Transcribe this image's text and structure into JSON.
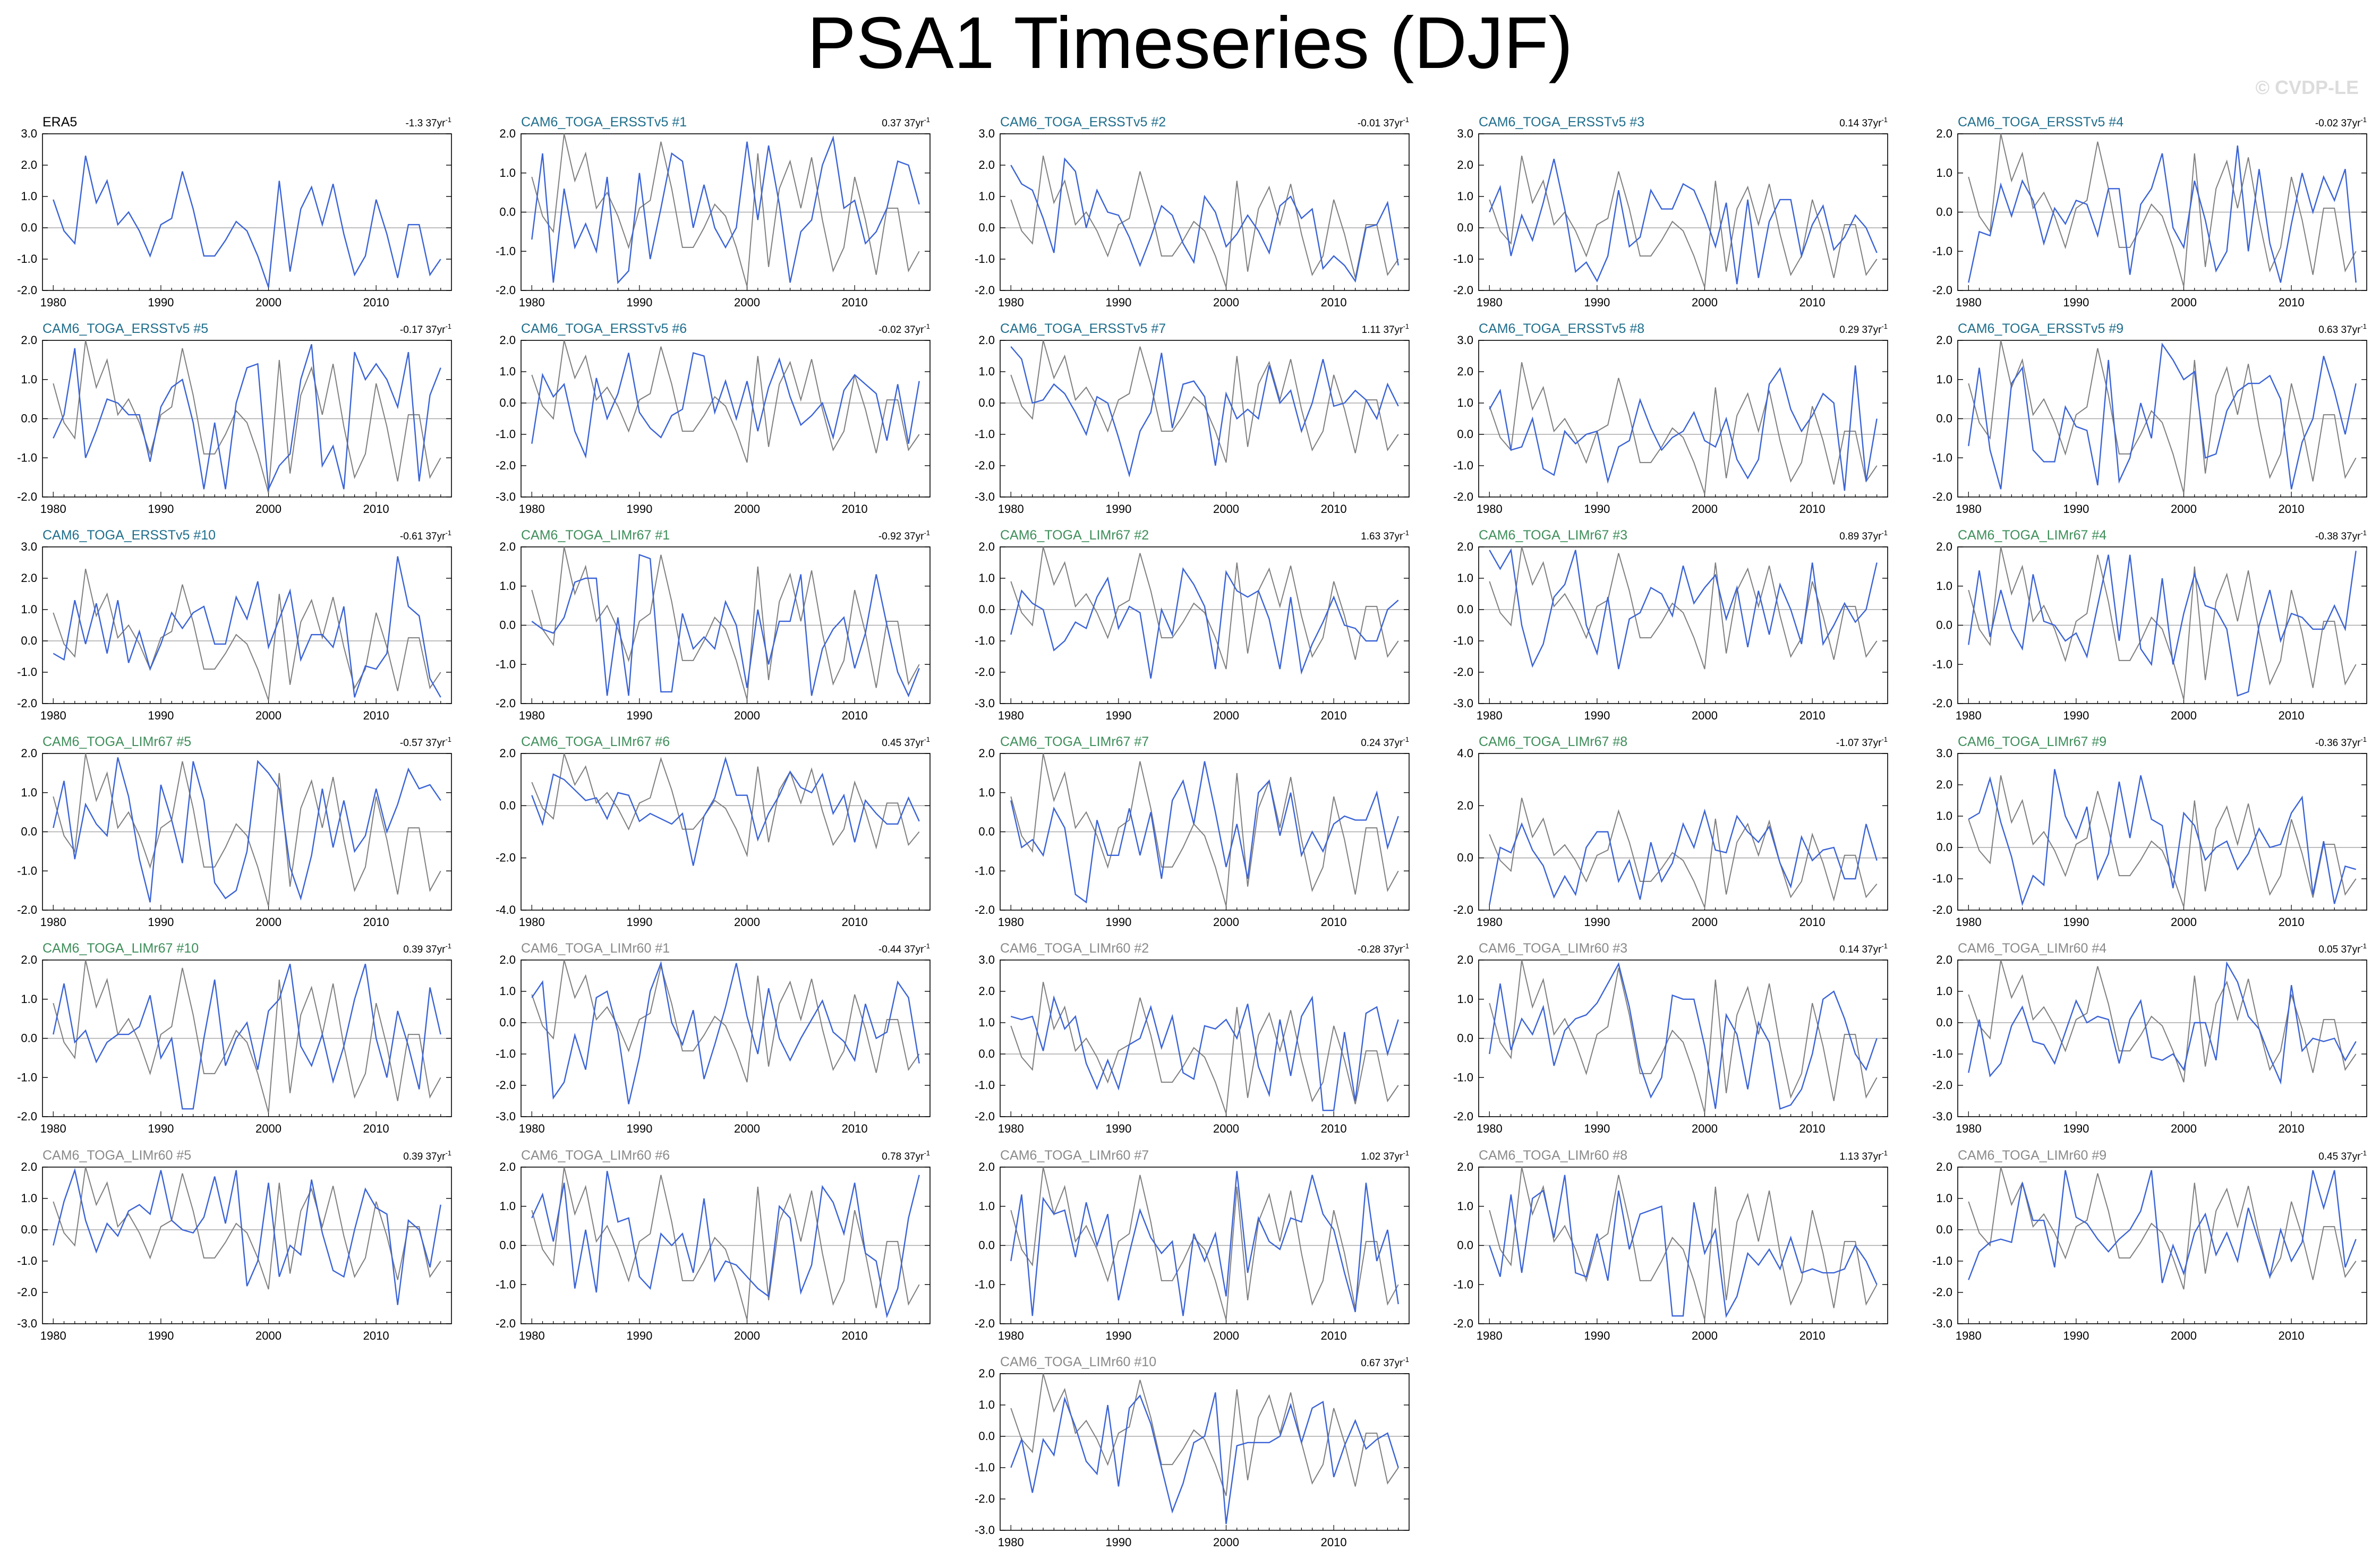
{
  "title": "PSA1 Timeseries (DJF)",
  "watermark": "© CVDP-LE",
  "colors": {
    "obs": "#000000",
    "ersst": "#1F6E8C",
    "limr67": "#3E8E5A",
    "limr60": "#8A8A8A",
    "line_member": "#3A63D6",
    "line_obs": "#7F7F7F"
  },
  "chart_data": {
    "type": "line",
    "x": [
      1980,
      1981,
      1982,
      1983,
      1984,
      1985,
      1986,
      1987,
      1988,
      1989,
      1990,
      1991,
      1992,
      1993,
      1994,
      1995,
      1996,
      1997,
      1998,
      1999,
      2000,
      2001,
      2002,
      2003,
      2004,
      2005,
      2006,
      2007,
      2008,
      2009,
      2010,
      2011,
      2012,
      2013,
      2014,
      2015,
      2016
    ],
    "x_ticks": [
      1980,
      1990,
      2000,
      2010
    ],
    "reference": {
      "name": "ERA5",
      "values": [
        0.9,
        -0.1,
        -0.5,
        2.3,
        0.8,
        1.5,
        0.1,
        0.5,
        -0.1,
        -0.9,
        0.1,
        0.3,
        1.8,
        0.6,
        -0.9,
        -0.9,
        -0.4,
        0.2,
        -0.1,
        -0.9,
        -1.9,
        1.5,
        -1.4,
        0.6,
        1.3,
        0.1,
        1.4,
        -0.2,
        -1.5,
        -0.9,
        0.9,
        -0.2,
        -1.6,
        0.1,
        0.1,
        -1.5,
        -1.0
      ]
    },
    "panels": [
      {
        "label": "ERA5",
        "group": "obs",
        "trend": "-1.3",
        "ylim": [
          -2.0,
          3.0
        ],
        "yticks": [
          3.0,
          2.0,
          1.0,
          0.0,
          -1.0,
          -2.0
        ]
      },
      {
        "label": "CAM6_TOGA_ERSSTv5 #1",
        "group": "ersst",
        "trend": "0.37",
        "ylim": [
          -2.0,
          2.0
        ],
        "yticks": [
          2.0,
          1.0,
          0.0,
          -1.0,
          -2.0
        ]
      },
      {
        "label": "CAM6_TOGA_ERSSTv5 #2",
        "group": "ersst",
        "trend": "-0.01",
        "ylim": [
          -2.0,
          3.0
        ],
        "yticks": [
          3.0,
          2.0,
          1.0,
          0.0,
          -1.0,
          -2.0
        ]
      },
      {
        "label": "CAM6_TOGA_ERSSTv5 #3",
        "group": "ersst",
        "trend": "0.14",
        "ylim": [
          -2.0,
          3.0
        ],
        "yticks": [
          3.0,
          2.0,
          1.0,
          0.0,
          -1.0,
          -2.0
        ]
      },
      {
        "label": "CAM6_TOGA_ERSSTv5 #4",
        "group": "ersst",
        "trend": "-0.02",
        "ylim": [
          -2.0,
          2.0
        ],
        "yticks": [
          2.0,
          1.0,
          0.0,
          -1.0,
          -2.0
        ]
      },
      {
        "label": "CAM6_TOGA_ERSSTv5 #5",
        "group": "ersst",
        "trend": "-0.17",
        "ylim": [
          -2.0,
          2.0
        ],
        "yticks": [
          2.0,
          1.0,
          0.0,
          -1.0,
          -2.0
        ]
      },
      {
        "label": "CAM6_TOGA_ERSSTv5 #6",
        "group": "ersst",
        "trend": "-0.02",
        "ylim": [
          -3.0,
          2.0
        ],
        "yticks": [
          2.0,
          1.0,
          0.0,
          -1.0,
          -2.0,
          -3.0
        ]
      },
      {
        "label": "CAM6_TOGA_ERSSTv5 #7",
        "group": "ersst",
        "trend": "1.11",
        "ylim": [
          -3.0,
          2.0
        ],
        "yticks": [
          2.0,
          1.0,
          0.0,
          -1.0,
          -2.0,
          -3.0
        ]
      },
      {
        "label": "CAM6_TOGA_ERSSTv5 #8",
        "group": "ersst",
        "trend": "0.29",
        "ylim": [
          -2.0,
          3.0
        ],
        "yticks": [
          3.0,
          2.0,
          1.0,
          0.0,
          -1.0,
          -2.0
        ]
      },
      {
        "label": "CAM6_TOGA_ERSSTv5 #9",
        "group": "ersst",
        "trend": "0.63",
        "ylim": [
          -2.0,
          2.0
        ],
        "yticks": [
          2.0,
          1.0,
          0.0,
          -1.0,
          -2.0
        ]
      },
      {
        "label": "CAM6_TOGA_ERSSTv5 #10",
        "group": "ersst",
        "trend": "-0.61",
        "ylim": [
          -2.0,
          3.0
        ],
        "yticks": [
          3.0,
          2.0,
          1.0,
          0.0,
          -1.0,
          -2.0
        ]
      },
      {
        "label": "CAM6_TOGA_LIMr67 #1",
        "group": "limr67",
        "trend": "-0.92",
        "ylim": [
          -2.0,
          2.0
        ],
        "yticks": [
          2.0,
          1.0,
          0.0,
          -1.0,
          -2.0
        ]
      },
      {
        "label": "CAM6_TOGA_LIMr67 #2",
        "group": "limr67",
        "trend": "1.63",
        "ylim": [
          -3.0,
          2.0
        ],
        "yticks": [
          2.0,
          1.0,
          0.0,
          -1.0,
          -2.0,
          -3.0
        ]
      },
      {
        "label": "CAM6_TOGA_LIMr67 #3",
        "group": "limr67",
        "trend": "0.89",
        "ylim": [
          -3.0,
          2.0
        ],
        "yticks": [
          2.0,
          1.0,
          0.0,
          -1.0,
          -2.0,
          -3.0
        ]
      },
      {
        "label": "CAM6_TOGA_LIMr67 #4",
        "group": "limr67",
        "trend": "-0.38",
        "ylim": [
          -2.0,
          2.0
        ],
        "yticks": [
          2.0,
          1.0,
          0.0,
          -1.0,
          -2.0
        ]
      },
      {
        "label": "CAM6_TOGA_LIMr67 #5",
        "group": "limr67",
        "trend": "-0.57",
        "ylim": [
          -2.0,
          2.0
        ],
        "yticks": [
          2.0,
          1.0,
          0.0,
          -1.0,
          -2.0
        ]
      },
      {
        "label": "CAM6_TOGA_LIMr67 #6",
        "group": "limr67",
        "trend": "0.45",
        "ylim": [
          -4.0,
          2.0
        ],
        "yticks": [
          2.0,
          0.0,
          -2.0,
          -4.0
        ]
      },
      {
        "label": "CAM6_TOGA_LIMr67 #7",
        "group": "limr67",
        "trend": "0.24",
        "ylim": [
          -2.0,
          2.0
        ],
        "yticks": [
          2.0,
          1.0,
          0.0,
          -1.0,
          -2.0
        ]
      },
      {
        "label": "CAM6_TOGA_LIMr67 #8",
        "group": "limr67",
        "trend": "-1.07",
        "ylim": [
          -2.0,
          4.0
        ],
        "yticks": [
          4.0,
          2.0,
          0.0,
          -2.0
        ]
      },
      {
        "label": "CAM6_TOGA_LIMr67 #9",
        "group": "limr67",
        "trend": "-0.36",
        "ylim": [
          -2.0,
          3.0
        ],
        "yticks": [
          3.0,
          2.0,
          1.0,
          0.0,
          -1.0,
          -2.0
        ]
      },
      {
        "label": "CAM6_TOGA_LIMr67 #10",
        "group": "limr67",
        "trend": "0.39",
        "ylim": [
          -2.0,
          2.0
        ],
        "yticks": [
          2.0,
          1.0,
          0.0,
          -1.0,
          -2.0
        ]
      },
      {
        "label": "CAM6_TOGA_LIMr60 #1",
        "group": "limr60",
        "trend": "-0.44",
        "ylim": [
          -3.0,
          2.0
        ],
        "yticks": [
          2.0,
          1.0,
          0.0,
          -1.0,
          -2.0,
          -3.0
        ]
      },
      {
        "label": "CAM6_TOGA_LIMr60 #2",
        "group": "limr60",
        "trend": "-0.28",
        "ylim": [
          -2.0,
          3.0
        ],
        "yticks": [
          3.0,
          2.0,
          1.0,
          0.0,
          -1.0,
          -2.0
        ]
      },
      {
        "label": "CAM6_TOGA_LIMr60 #3",
        "group": "limr60",
        "trend": "0.14",
        "ylim": [
          -2.0,
          2.0
        ],
        "yticks": [
          2.0,
          1.0,
          0.0,
          -1.0,
          -2.0
        ]
      },
      {
        "label": "CAM6_TOGA_LIMr60 #4",
        "group": "limr60",
        "trend": "0.05",
        "ylim": [
          -3.0,
          2.0
        ],
        "yticks": [
          2.0,
          1.0,
          0.0,
          -1.0,
          -2.0,
          -3.0
        ]
      },
      {
        "label": "CAM6_TOGA_LIMr60 #5",
        "group": "limr60",
        "trend": "0.39",
        "ylim": [
          -3.0,
          2.0
        ],
        "yticks": [
          2.0,
          1.0,
          0.0,
          -1.0,
          -2.0,
          -3.0
        ]
      },
      {
        "label": "CAM6_TOGA_LIMr60 #6",
        "group": "limr60",
        "trend": "0.78",
        "ylim": [
          -2.0,
          2.0
        ],
        "yticks": [
          2.0,
          1.0,
          0.0,
          -1.0,
          -2.0
        ]
      },
      {
        "label": "CAM6_TOGA_LIMr60 #7",
        "group": "limr60",
        "trend": "1.02",
        "ylim": [
          -2.0,
          2.0
        ],
        "yticks": [
          2.0,
          1.0,
          0.0,
          -1.0,
          -2.0
        ]
      },
      {
        "label": "CAM6_TOGA_LIMr60 #8",
        "group": "limr60",
        "trend": "1.13",
        "ylim": [
          -2.0,
          2.0
        ],
        "yticks": [
          2.0,
          1.0,
          0.0,
          -1.0,
          -2.0
        ]
      },
      {
        "label": "CAM6_TOGA_LIMr60 #9",
        "group": "limr60",
        "trend": "0.45",
        "ylim": [
          -3.0,
          2.0
        ],
        "yticks": [
          2.0,
          1.0,
          0.0,
          -1.0,
          -2.0,
          -3.0
        ]
      },
      {
        "label": "CAM6_TOGA_LIMr60 #10",
        "group": "limr60",
        "trend": "0.67",
        "ylim": [
          -3.0,
          2.0
        ],
        "yticks": [
          2.0,
          1.0,
          0.0,
          -1.0,
          -2.0,
          -3.0
        ]
      }
    ],
    "trend_unit": "37yr",
    "trend_exp": "-1"
  }
}
